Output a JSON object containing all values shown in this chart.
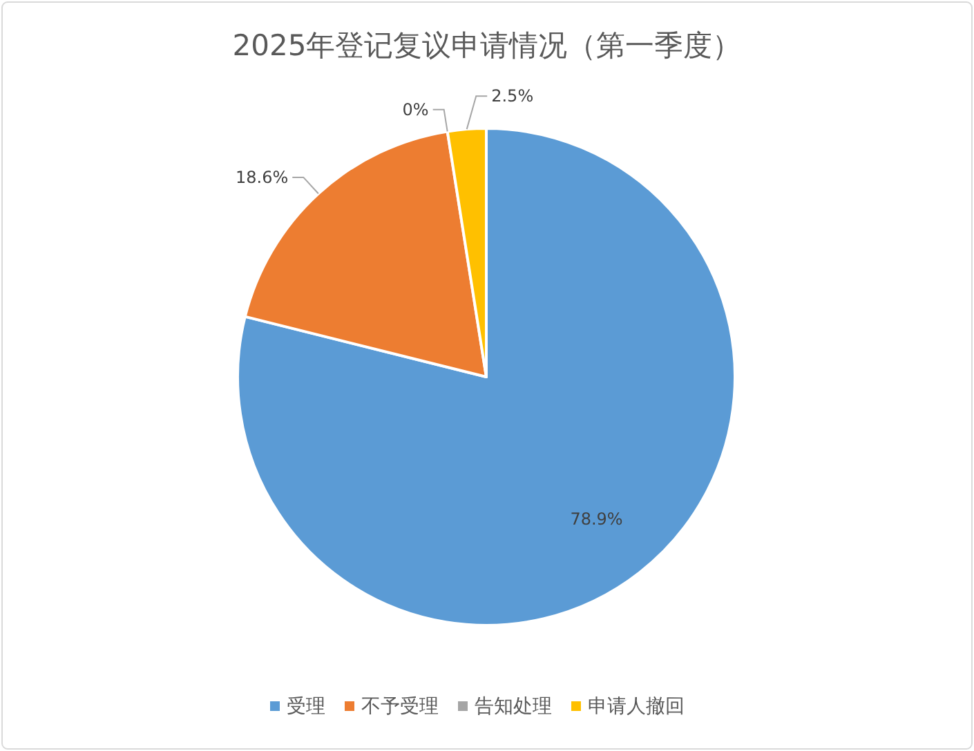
{
  "chart_data": {
    "type": "pie",
    "title": "2025年登记复议申请情况（第一季度）",
    "categories": [
      "受理",
      "不予受理",
      "告知处理",
      "申请人撤回"
    ],
    "values": [
      78.9,
      18.6,
      0,
      2.5
    ],
    "value_labels": [
      "78.9%",
      "18.6%",
      "0%",
      "2.5%"
    ],
    "colors": [
      "#5b9bd5",
      "#ed7d31",
      "#a5a5a5",
      "#ffc000"
    ],
    "legend": "bottom"
  }
}
